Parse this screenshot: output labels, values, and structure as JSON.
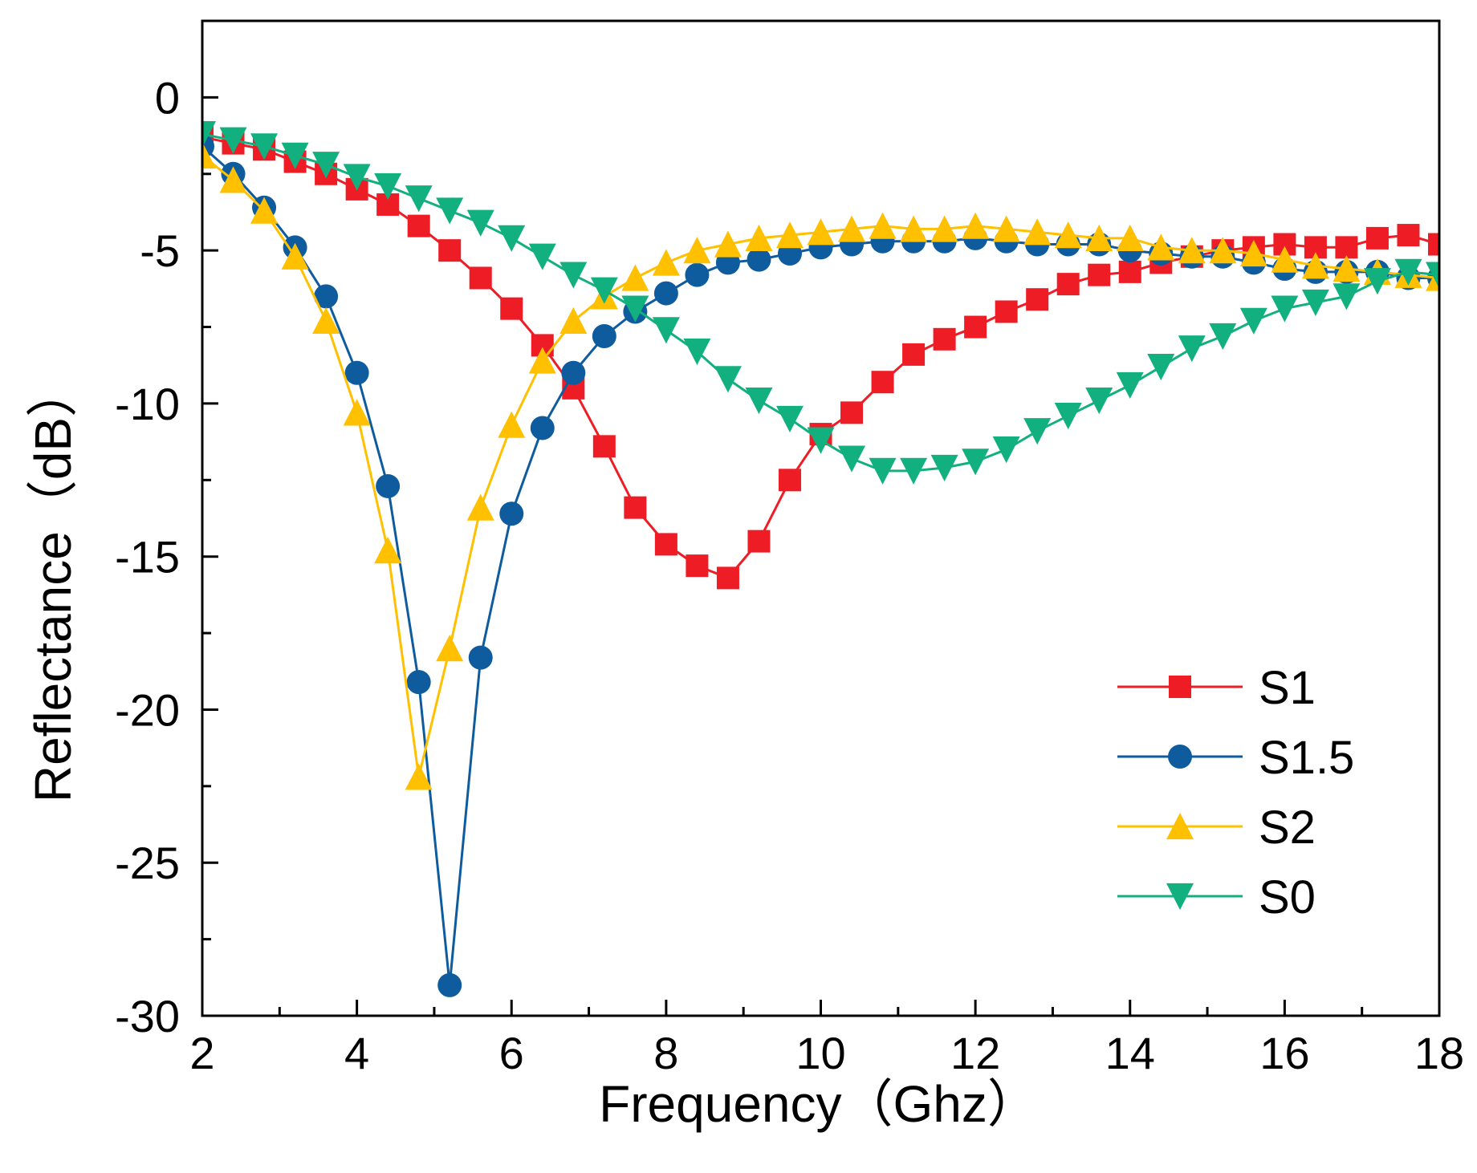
{
  "chart_data": {
    "type": "line",
    "title": "",
    "xlabel": "Frequency（Ghz）",
    "ylabel": "Reflectance（dB）",
    "xlim": [
      2,
      18
    ],
    "ylim": [
      -30,
      2.5
    ],
    "xticks": [
      2,
      4,
      6,
      8,
      10,
      12,
      14,
      16,
      18
    ],
    "yticks": [
      0,
      -5,
      -10,
      -15,
      -20,
      -25,
      -30
    ],
    "xtick_labels": [
      "2",
      "4",
      "6",
      "8",
      "10",
      "12",
      "14",
      "16",
      "18"
    ],
    "ytick_labels": [
      "0",
      "-5",
      "-10",
      "-15",
      "-20",
      "-25",
      "-30"
    ],
    "grid": false,
    "legend_position": "lower-right",
    "series": [
      {
        "name": "S1",
        "color": "#ee1c25",
        "marker": "square",
        "x": [
          2.0,
          2.4,
          2.8,
          3.2,
          3.6,
          4.0,
          4.4,
          4.8,
          5.2,
          5.6,
          6.0,
          6.4,
          6.8,
          7.2,
          7.6,
          8.0,
          8.4,
          8.8,
          9.2,
          9.6,
          10.0,
          10.4,
          10.8,
          11.2,
          11.6,
          12.0,
          12.4,
          12.8,
          13.2,
          13.6,
          14.0,
          14.4,
          14.8,
          15.2,
          15.6,
          16.0,
          16.4,
          16.8,
          17.2,
          17.6,
          18.0
        ],
        "y": [
          -1.3,
          -1.5,
          -1.7,
          -2.1,
          -2.5,
          -3.0,
          -3.5,
          -4.2,
          -5.0,
          -5.9,
          -6.9,
          -8.1,
          -9.5,
          -11.4,
          -13.4,
          -14.6,
          -15.3,
          -15.7,
          -14.5,
          -12.5,
          -11.0,
          -10.3,
          -9.3,
          -8.4,
          -7.9,
          -7.5,
          -7.0,
          -6.6,
          -6.1,
          -5.8,
          -5.7,
          -5.4,
          -5.2,
          -5.0,
          -4.9,
          -4.8,
          -4.9,
          -4.9,
          -4.6,
          -4.5,
          -4.8
        ]
      },
      {
        "name": "S1.5",
        "color": "#0e5c9e",
        "marker": "circle",
        "x": [
          2.0,
          2.4,
          2.8,
          3.2,
          3.6,
          4.0,
          4.4,
          4.8,
          5.2,
          5.6,
          6.0,
          6.4,
          6.8,
          7.2,
          7.6,
          8.0,
          8.4,
          8.8,
          9.2,
          9.6,
          10.0,
          10.4,
          10.8,
          11.2,
          11.6,
          12.0,
          12.4,
          12.8,
          13.2,
          13.6,
          14.0,
          14.4,
          14.8,
          15.2,
          15.6,
          16.0,
          16.4,
          16.8,
          17.2,
          17.6,
          18.0
        ],
        "y": [
          -1.6,
          -2.5,
          -3.6,
          -4.9,
          -6.5,
          -9.0,
          -12.7,
          -19.1,
          -29.0,
          -18.3,
          -13.6,
          -10.8,
          -9.0,
          -7.8,
          -7.0,
          -6.4,
          -5.8,
          -5.4,
          -5.3,
          -5.1,
          -4.9,
          -4.8,
          -4.7,
          -4.7,
          -4.7,
          -4.6,
          -4.7,
          -4.8,
          -4.8,
          -4.8,
          -5.0,
          -5.1,
          -5.2,
          -5.2,
          -5.4,
          -5.6,
          -5.7,
          -5.7,
          -5.7,
          -5.9,
          -5.9
        ]
      },
      {
        "name": "S2",
        "color": "#ffc000",
        "marker": "triangle-up",
        "x": [
          2.0,
          2.4,
          2.8,
          3.2,
          3.6,
          4.0,
          4.4,
          4.8,
          5.2,
          5.6,
          6.0,
          6.4,
          6.8,
          7.2,
          7.6,
          8.0,
          8.4,
          8.8,
          9.2,
          9.6,
          10.0,
          10.4,
          10.8,
          11.2,
          11.6,
          12.0,
          12.4,
          12.8,
          13.2,
          13.6,
          14.0,
          14.4,
          14.8,
          15.2,
          15.6,
          16.0,
          16.4,
          16.8,
          17.2,
          17.6,
          18.0
        ],
        "y": [
          -1.9,
          -2.7,
          -3.7,
          -5.2,
          -7.3,
          -10.3,
          -14.8,
          -22.2,
          -18.0,
          -13.4,
          -10.7,
          -8.6,
          -7.3,
          -6.5,
          -5.9,
          -5.4,
          -5.0,
          -4.8,
          -4.6,
          -4.5,
          -4.4,
          -4.3,
          -4.2,
          -4.3,
          -4.3,
          -4.2,
          -4.3,
          -4.4,
          -4.5,
          -4.6,
          -4.6,
          -4.9,
          -5.0,
          -5.0,
          -5.1,
          -5.3,
          -5.5,
          -5.6,
          -5.7,
          -5.8,
          -5.9
        ]
      },
      {
        "name": "S0",
        "color": "#13b07f",
        "marker": "triangle-down",
        "x": [
          2.0,
          2.4,
          2.8,
          3.2,
          3.6,
          4.0,
          4.4,
          4.8,
          5.2,
          5.6,
          6.0,
          6.4,
          6.8,
          7.2,
          7.6,
          8.0,
          8.4,
          8.8,
          9.2,
          9.6,
          10.0,
          10.4,
          10.8,
          11.2,
          11.6,
          12.0,
          12.4,
          12.8,
          13.2,
          13.6,
          14.0,
          14.4,
          14.8,
          15.2,
          15.6,
          16.0,
          16.4,
          16.8,
          17.2,
          17.6,
          18.0
        ],
        "y": [
          -1.2,
          -1.4,
          -1.6,
          -1.9,
          -2.2,
          -2.6,
          -2.9,
          -3.3,
          -3.7,
          -4.1,
          -4.6,
          -5.2,
          -5.8,
          -6.3,
          -6.9,
          -7.6,
          -8.3,
          -9.2,
          -9.9,
          -10.5,
          -11.2,
          -11.8,
          -12.2,
          -12.2,
          -12.1,
          -11.9,
          -11.5,
          -10.9,
          -10.4,
          -9.9,
          -9.4,
          -8.8,
          -8.2,
          -7.8,
          -7.3,
          -6.9,
          -6.7,
          -6.5,
          -6.0,
          -5.7,
          -5.8
        ]
      }
    ]
  }
}
